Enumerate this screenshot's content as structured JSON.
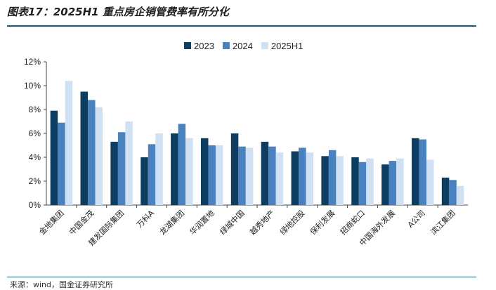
{
  "header": {
    "title": "图表17：2025H1 重点房企销管费率有所分化"
  },
  "footer": {
    "source": "来源：wind，国金证券研究所"
  },
  "chart_data": {
    "type": "bar",
    "title": "图表17：2025H1 重点房企销管费率有所分化",
    "xlabel": "",
    "ylabel": "",
    "categories": [
      "金地集团",
      "中国金茂",
      "建发国际集团",
      "万科A",
      "龙湖集团",
      "华润置地",
      "绿城中国",
      "越秀地产",
      "绿地控股",
      "保利发展",
      "招商蛇口",
      "中国海外发展",
      "A公司",
      "滨江集团"
    ],
    "series": [
      {
        "name": "2023",
        "color": "#0d3e62",
        "values": [
          7.9,
          9.5,
          5.3,
          4.0,
          6.0,
          5.6,
          6.0,
          5.3,
          4.5,
          4.1,
          4.0,
          3.4,
          5.6,
          2.3
        ]
      },
      {
        "name": "2024",
        "color": "#4a82c0",
        "values": [
          6.9,
          8.8,
          6.1,
          5.1,
          6.8,
          5.0,
          4.9,
          4.9,
          4.8,
          4.6,
          3.6,
          3.7,
          5.5,
          2.1
        ]
      },
      {
        "name": "2025H1",
        "color": "#cfe1f2",
        "values": [
          10.4,
          8.2,
          7.0,
          6.0,
          5.6,
          5.0,
          4.8,
          4.4,
          4.4,
          4.1,
          3.9,
          3.9,
          3.8,
          1.6
        ]
      }
    ],
    "ylim": [
      0,
      12
    ],
    "yticks": [
      "0%",
      "2%",
      "4%",
      "6%",
      "8%",
      "10%",
      "12%"
    ],
    "grid": false,
    "legend": "top-center"
  }
}
